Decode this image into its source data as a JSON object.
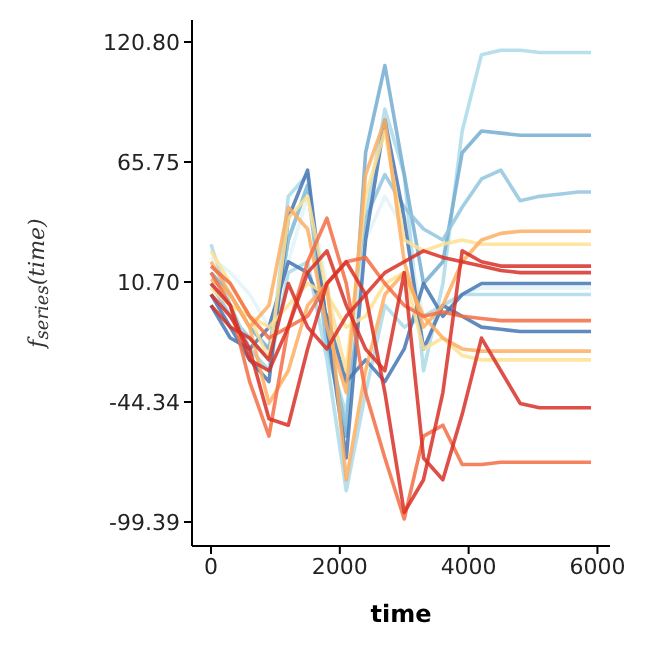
{
  "chart_data": {
    "type": "line",
    "xlabel": "time",
    "ylabel": "f$_{series}$(time)",
    "x": [
      0,
      300,
      600,
      900,
      1200,
      1500,
      1800,
      2100,
      2400,
      2700,
      3000,
      3300,
      3600,
      3900,
      4200,
      4500,
      4800,
      5100,
      5400,
      5700,
      5900
    ],
    "xlim": [
      -295,
      6195
    ],
    "xticks": [
      0,
      2000,
      4000,
      6000
    ],
    "ylim": [
      -110.4,
      130.9
    ],
    "yticks": [
      {
        "value": -99.39,
        "label": "-99.39"
      },
      {
        "value": -44.34,
        "label": "-44.34"
      },
      {
        "value": 10.7,
        "label": "10.70"
      },
      {
        "value": 65.75,
        "label": "65.75"
      },
      {
        "value": 120.8,
        "label": "120.80"
      }
    ],
    "grid": false,
    "marker": "none",
    "line_style": "solid",
    "series": [
      {
        "color": "#abd9e9",
        "values": [
          28,
          0,
          -20,
          -30,
          50,
          60,
          -20,
          -50,
          40,
          90,
          60,
          -30,
          10,
          80,
          115,
          117,
          117,
          116,
          116,
          116,
          116
        ]
      },
      {
        "color": "#74add1",
        "values": [
          15,
          5,
          -10,
          -20,
          30,
          55,
          -10,
          -60,
          70,
          110,
          60,
          10,
          20,
          70,
          80,
          79,
          78,
          78,
          78,
          78,
          78
        ]
      },
      {
        "color": "#92c5de",
        "values": [
          10,
          -5,
          -15,
          -25,
          30,
          55,
          -20,
          -55,
          40,
          60,
          45,
          35,
          30,
          45,
          58,
          62,
          48,
          50,
          51,
          52,
          52
        ]
      },
      {
        "color": "#e0f3f8",
        "values": [
          22,
          15,
          5,
          -10,
          20,
          50,
          10,
          -35,
          30,
          50,
          35,
          -5,
          0,
          5,
          8,
          8,
          8,
          8,
          8,
          8,
          8
        ]
      },
      {
        "color": "#abd9e9",
        "values": [
          10,
          0,
          -20,
          -30,
          15,
          20,
          -25,
          -85,
          -40,
          0,
          -10,
          -5,
          0,
          5,
          5,
          5,
          5,
          5,
          5,
          5,
          5
        ]
      },
      {
        "color": "#4575b4",
        "values": [
          5,
          -10,
          -25,
          -35,
          40,
          62,
          -10,
          -70,
          30,
          85,
          40,
          -20,
          0,
          -5,
          -10,
          -11,
          -12,
          -12,
          -12,
          -12,
          -12
        ]
      },
      {
        "color": "#4575b4",
        "values": [
          0,
          -15,
          -20,
          -10,
          20,
          15,
          -5,
          -35,
          -25,
          -35,
          -20,
          10,
          -5,
          5,
          10,
          10,
          10,
          10,
          10,
          10,
          10
        ]
      },
      {
        "color": "#fee090",
        "values": [
          25,
          10,
          -5,
          -25,
          40,
          50,
          5,
          -30,
          50,
          80,
          30,
          25,
          28,
          30,
          28,
          28,
          28,
          28,
          28,
          28,
          28
        ]
      },
      {
        "color": "#fee090",
        "values": [
          8,
          0,
          -5,
          -10,
          0,
          10,
          5,
          -10,
          -5,
          10,
          15,
          -20,
          -15,
          -23,
          -25,
          -25,
          -25,
          -25,
          -25,
          -25,
          -25
        ]
      },
      {
        "color": "#fdae61",
        "values": [
          20,
          5,
          -10,
          0,
          45,
          35,
          -10,
          -40,
          60,
          85,
          20,
          -10,
          0,
          20,
          30,
          33,
          34,
          34,
          34,
          34,
          34
        ]
      },
      {
        "color": "#fdae61",
        "values": [
          12,
          5,
          -10,
          -45,
          -30,
          0,
          10,
          -80,
          -30,
          5,
          15,
          -5,
          -15,
          -20,
          -21,
          -21,
          -21,
          -21,
          -21,
          -21,
          -21
        ]
      },
      {
        "color": "#f46d43",
        "values": [
          15,
          0,
          -35,
          -60,
          -10,
          20,
          40,
          10,
          -40,
          -70,
          -98,
          -60,
          -55,
          -73,
          -73,
          -72,
          -72,
          -72,
          -72,
          -72,
          -72
        ]
      },
      {
        "color": "#f46d43",
        "values": [
          18,
          10,
          -5,
          -15,
          -10,
          -5,
          10,
          20,
          22,
          10,
          0,
          -5,
          -3,
          -5,
          -6,
          -7,
          -7,
          -7,
          -7,
          -7,
          -7
        ]
      },
      {
        "color": "#d73027",
        "values": [
          5,
          -5,
          -20,
          -52,
          -55,
          -20,
          10,
          20,
          5,
          -40,
          -95,
          -80,
          -40,
          25,
          20,
          18,
          18,
          18,
          18,
          18,
          18
        ]
      },
      {
        "color": "#d73027",
        "values": [
          10,
          0,
          -25,
          -30,
          -10,
          15,
          25,
          0,
          -20,
          -30,
          15,
          -70,
          -80,
          -50,
          -15,
          -30,
          -45,
          -47,
          -47,
          -47,
          -47
        ]
      },
      {
        "color": "#d73027",
        "values": [
          0,
          -10,
          -15,
          -25,
          10,
          -10,
          -20,
          -5,
          5,
          15,
          20,
          25,
          22,
          20,
          18,
          16,
          15,
          15,
          15,
          15,
          15
        ]
      }
    ]
  }
}
